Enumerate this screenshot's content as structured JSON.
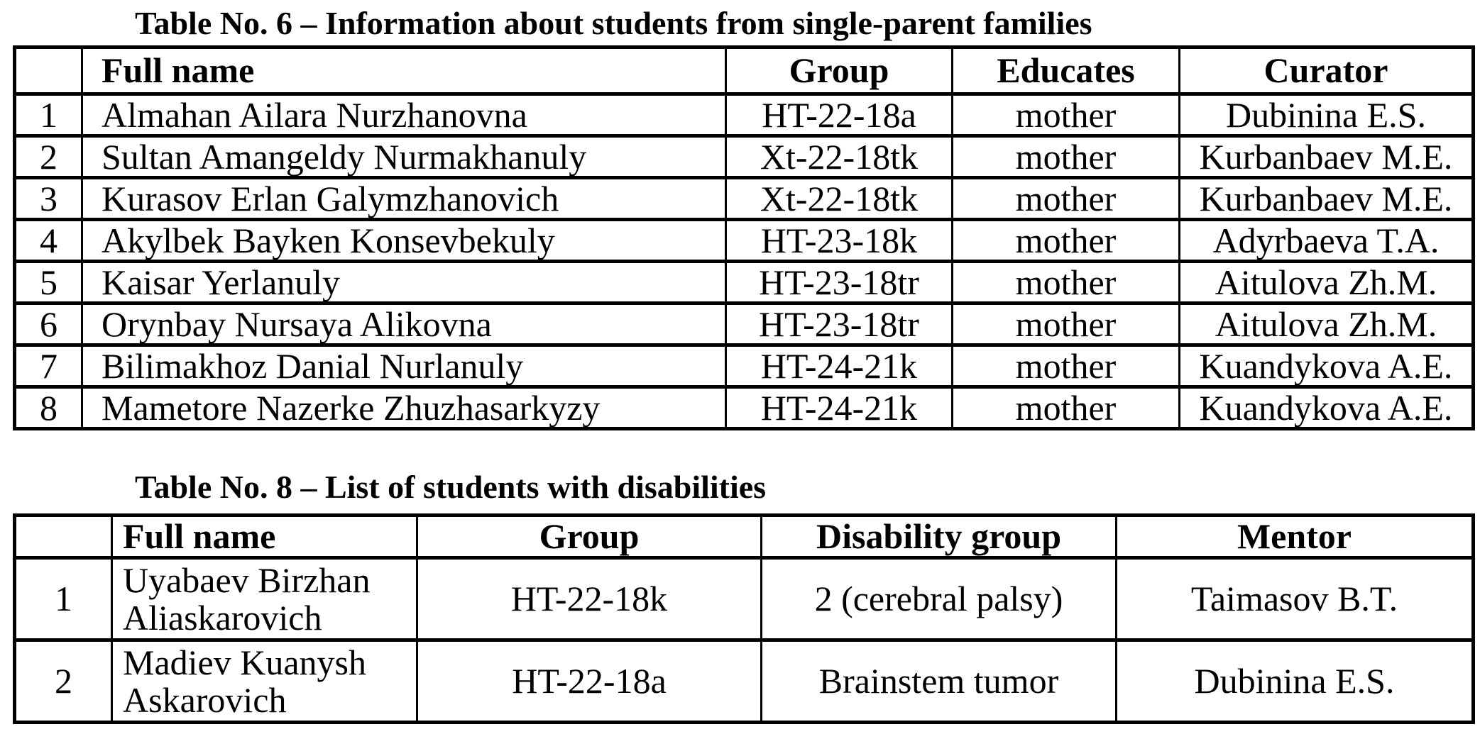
{
  "page": {
    "background_color": "#ffffff",
    "text_color": "#000000"
  },
  "tables": [
    {
      "title": "Table No. 6 – Information about students from single-parent families",
      "headers": [
        "",
        "Full name",
        "Group",
        "Educates",
        "Curator"
      ],
      "rows": [
        [
          "1",
          "Almahan Ailara Nurzhanovna",
          "HT-22-18a",
          "mother",
          "Dubinina E.S."
        ],
        [
          "2",
          "Sultan Amangeldy Nurmakhanuly",
          "Xt-22-18tk",
          "mother",
          "Kurbanbaev M.E."
        ],
        [
          "3",
          "Kurasov Erlan Galymzhanovich",
          "Xt-22-18tk",
          "mother",
          "Kurbanbaev M.E."
        ],
        [
          "4",
          "Akylbek Bayken Konsevbekuly",
          "HT-23-18k",
          "mother",
          "Adyrbaeva T.A."
        ],
        [
          "5",
          "Kaisar Yerlanuly",
          "HT-23-18tr",
          "mother",
          "Aitulova Zh.M."
        ],
        [
          "6",
          "Orynbay Nursaya Alikovna",
          "HT-23-18tr",
          "mother",
          "Aitulova Zh.M."
        ],
        [
          "7",
          "Bilimakhoz Danial Nurlanuly",
          "HT-24-21k",
          "mother",
          "Kuandykova A.E."
        ],
        [
          "8",
          "Mametore Nazerke Zhuzhasarkyzy",
          "HT-24-21k",
          "mother",
          "Kuandykova A.E."
        ]
      ]
    },
    {
      "title": "Table No. 8 – List of students with disabilities",
      "headers": [
        "",
        "Full name",
        "Group",
        "Disability group",
        "Mentor"
      ],
      "rows": [
        [
          "1",
          "Uyabaev Birzhan Aliaskarovich",
          "HT-22-18k",
          "2 (cerebral palsy)",
          "Taimasov B.T."
        ],
        [
          "2",
          "Madiev Kuanysh Askarovich",
          "HT-22-18a",
          "Brainstem tumor",
          "Dubinina E.S."
        ]
      ]
    }
  ]
}
